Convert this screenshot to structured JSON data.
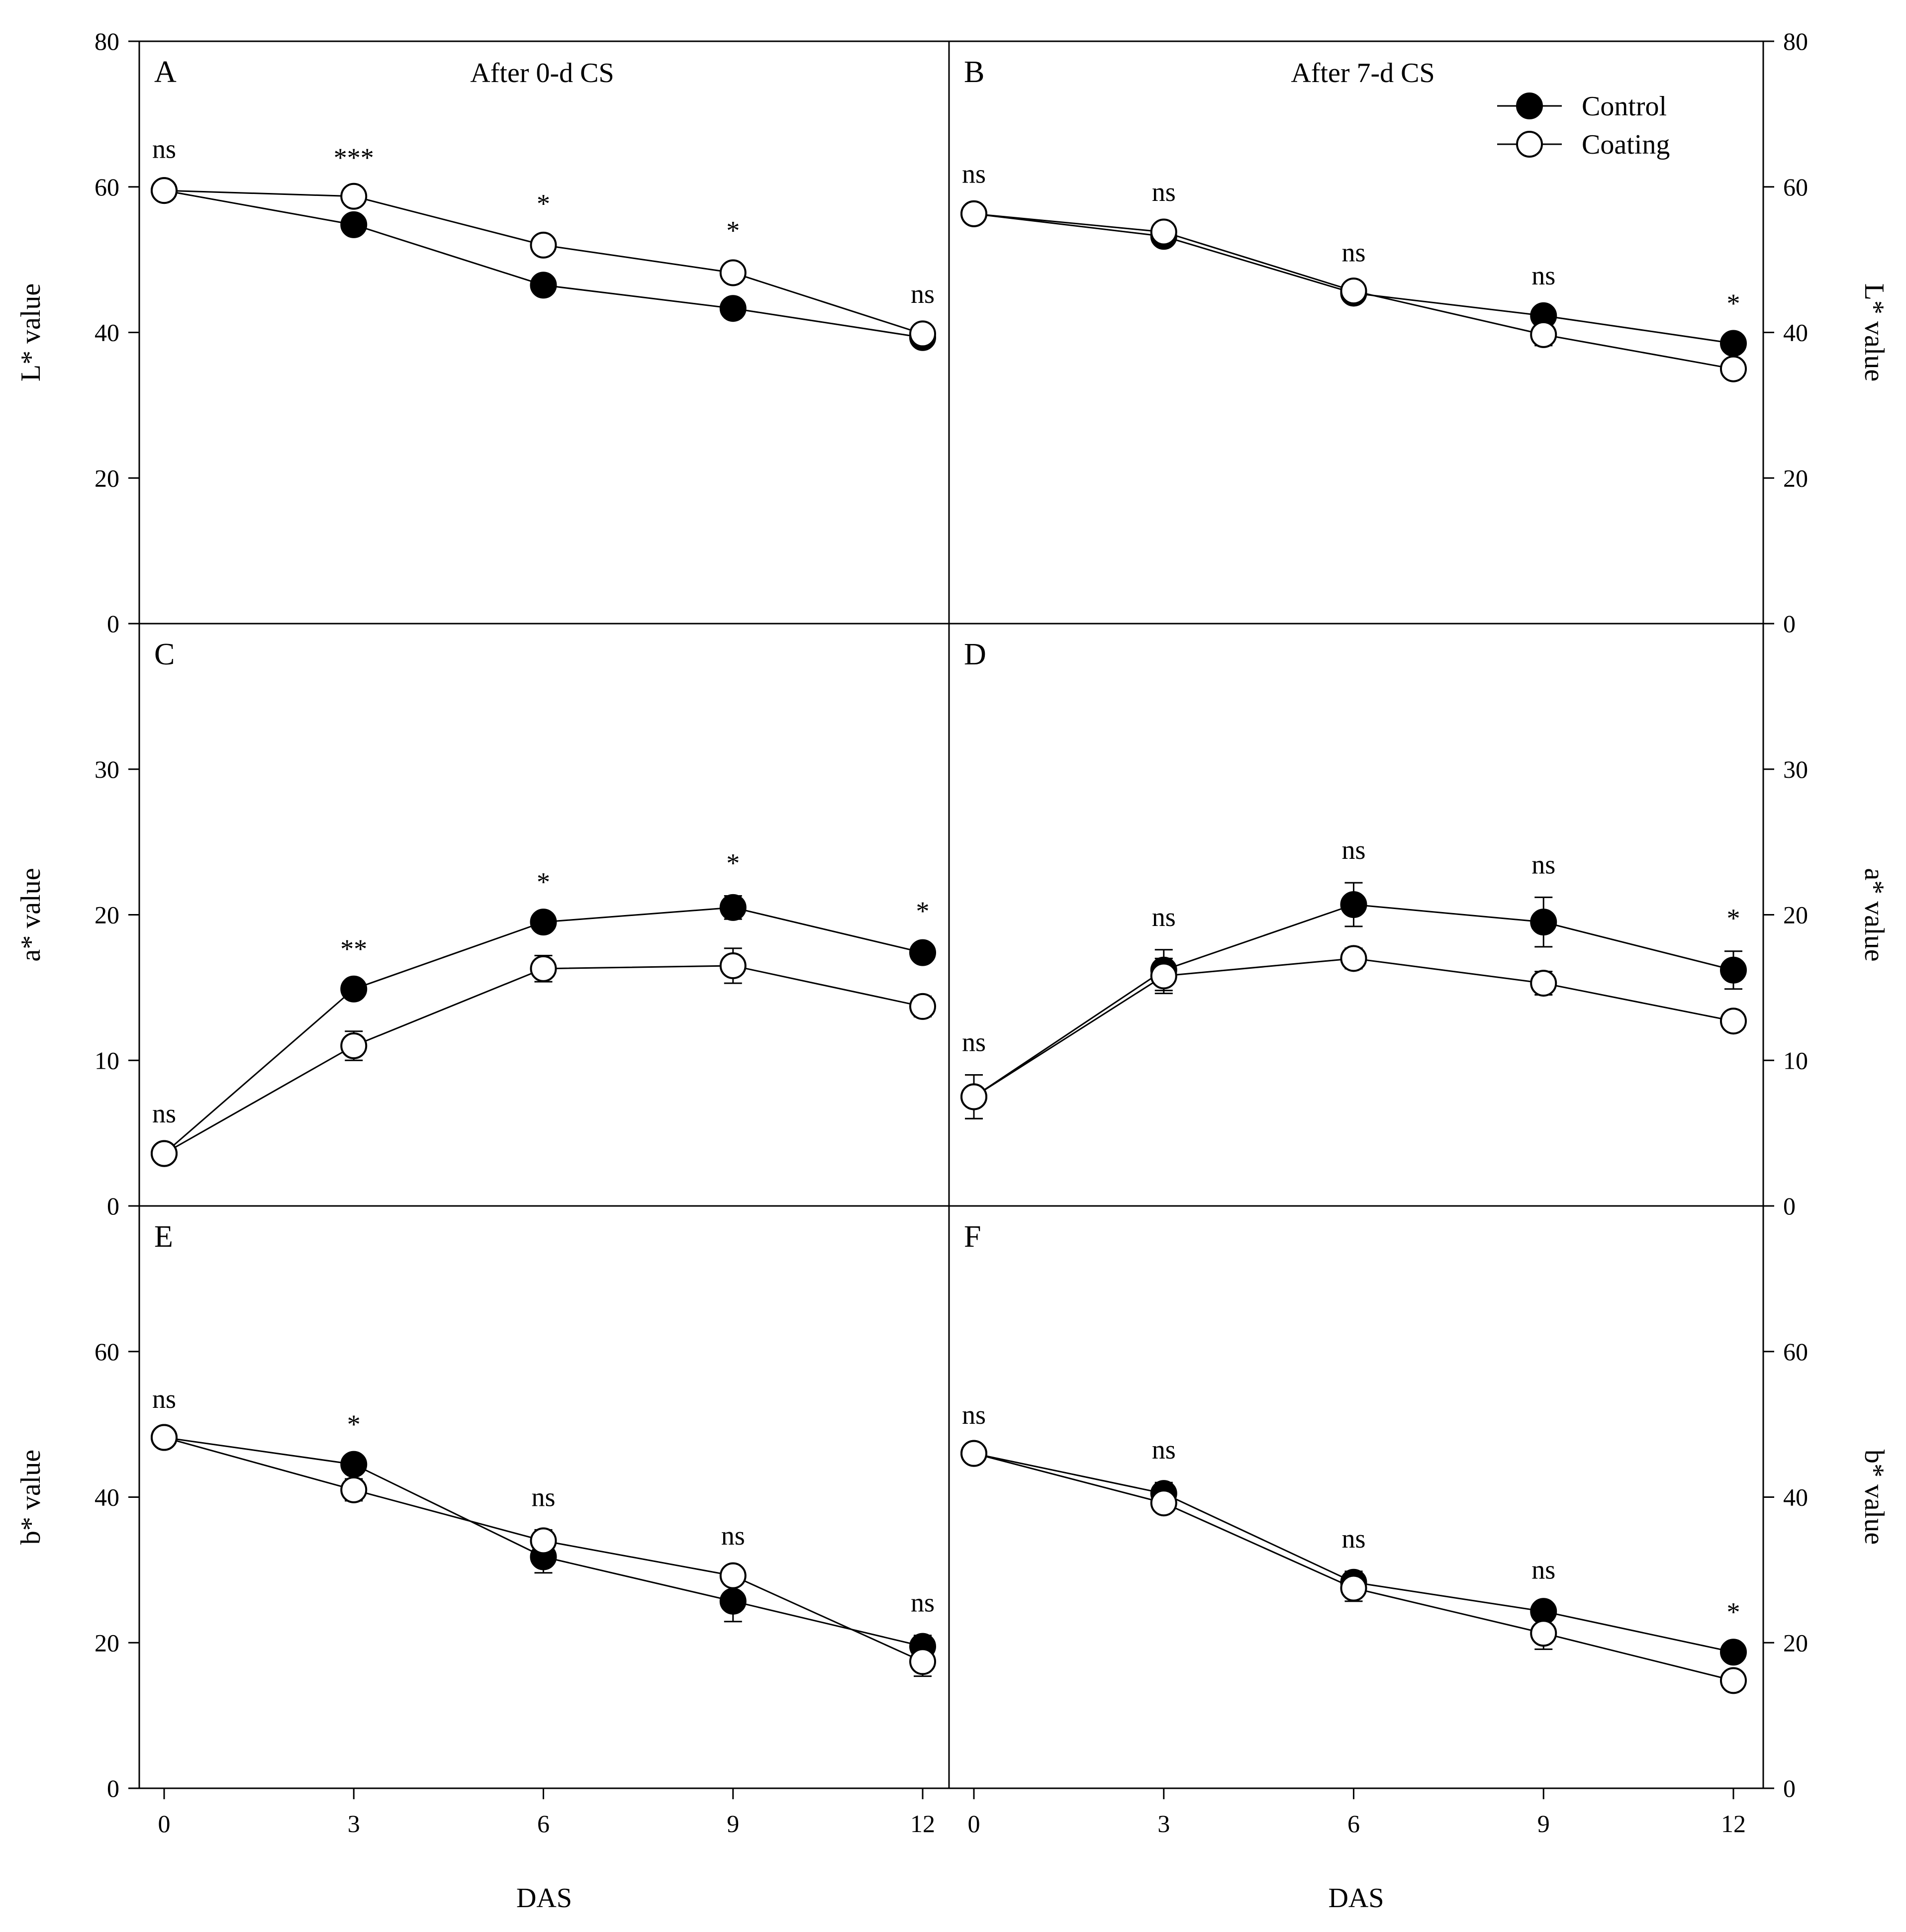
{
  "chart_data": {
    "type": "line",
    "x_label": "DAS",
    "x_ticks": [
      0,
      3,
      6,
      9,
      12
    ],
    "legend": [
      {
        "name": "Control",
        "marker": "filled-circle"
      },
      {
        "name": "Coating",
        "marker": "open-circle"
      }
    ],
    "rows": [
      {
        "key": "L",
        "y_label": "L* value",
        "ylim": [
          0,
          80
        ],
        "ticks": [
          0,
          20,
          40,
          60,
          80
        ]
      },
      {
        "key": "a",
        "y_label": "a* value",
        "ylim": [
          0,
          40
        ],
        "ticks": [
          0,
          10,
          20,
          30
        ]
      },
      {
        "key": "b",
        "y_label": "b* value",
        "ylim": [
          0,
          80
        ],
        "ticks": [
          0,
          20,
          40,
          60
        ]
      }
    ],
    "panels": [
      {
        "letter": "A",
        "title": "After 0-d CS",
        "row": 0,
        "col": 0,
        "control": [
          59.5,
          54.8,
          46.5,
          43.3,
          39.3
        ],
        "control_err": [
          1.2,
          0.8,
          1.2,
          1.3,
          1.2
        ],
        "coating": [
          59.5,
          58.7,
          52.0,
          48.2,
          39.8
        ],
        "coating_err": [
          1.2,
          0.8,
          1.2,
          1.3,
          1.0
        ],
        "sig": [
          "ns",
          "***",
          "*",
          "*",
          "ns"
        ]
      },
      {
        "letter": "B",
        "title": "After 7-d CS",
        "row": 0,
        "col": 1,
        "control": [
          56.3,
          53.2,
          45.4,
          42.3,
          38.5
        ],
        "control_err": [
          1.0,
          1.2,
          0.8,
          1.0,
          1.0
        ],
        "coating": [
          56.3,
          53.8,
          45.7,
          39.7,
          35.0
        ],
        "coating_err": [
          1.0,
          1.0,
          0.8,
          1.5,
          1.2
        ],
        "sig": [
          "ns",
          "ns",
          "ns",
          "ns",
          "*"
        ]
      },
      {
        "letter": "C",
        "title": "",
        "row": 1,
        "col": 0,
        "control": [
          3.6,
          14.9,
          19.5,
          20.5,
          17.4
        ],
        "control_err": [
          0.5,
          0.5,
          0.5,
          0.8,
          0.6
        ],
        "coating": [
          3.6,
          11.0,
          16.3,
          16.5,
          13.7
        ],
        "coating_err": [
          0.5,
          1.0,
          0.9,
          1.2,
          0.7
        ],
        "sig": [
          "ns",
          "**",
          "*",
          "*",
          "*"
        ]
      },
      {
        "letter": "D",
        "title": "",
        "row": 1,
        "col": 1,
        "control": [
          7.5,
          16.2,
          20.7,
          19.5,
          16.2
        ],
        "control_err": [
          1.5,
          1.4,
          1.5,
          1.7,
          1.3
        ],
        "coating": [
          7.5,
          15.8,
          17.0,
          15.3,
          12.7
        ],
        "coating_err": [
          1.5,
          1.2,
          0.7,
          0.8,
          0.6
        ],
        "sig": [
          "ns",
          "ns",
          "ns",
          "ns",
          "*"
        ]
      },
      {
        "letter": "E",
        "title": "",
        "row": 2,
        "col": 0,
        "control": [
          48.2,
          44.5,
          31.8,
          25.7,
          19.5
        ],
        "control_err": [
          0.8,
          1.0,
          2.2,
          2.8,
          1.5
        ],
        "coating": [
          48.2,
          41.0,
          34.0,
          29.2,
          17.4
        ],
        "coating_err": [
          0.8,
          1.5,
          1.5,
          1.0,
          2.0
        ],
        "sig": [
          "ns",
          "*",
          "ns",
          "ns",
          "ns"
        ]
      },
      {
        "letter": "F",
        "title": "",
        "row": 2,
        "col": 1,
        "control": [
          46.0,
          40.5,
          28.3,
          24.3,
          18.7
        ],
        "control_err": [
          0.8,
          1.5,
          1.5,
          1.2,
          1.0
        ],
        "coating": [
          46.0,
          39.2,
          27.5,
          21.3,
          14.8
        ],
        "coating_err": [
          0.8,
          1.2,
          1.8,
          2.2,
          1.3
        ],
        "sig": [
          "ns",
          "ns",
          "ns",
          "ns",
          "*"
        ]
      }
    ]
  }
}
